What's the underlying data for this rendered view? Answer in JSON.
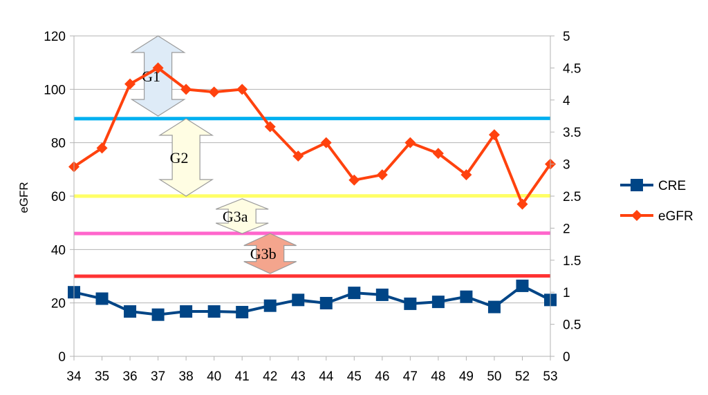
{
  "chart_data": {
    "type": "line",
    "categories": [
      "34",
      "35",
      "36",
      "37",
      "38",
      "40",
      "41",
      "42",
      "43",
      "44",
      "45",
      "46",
      "47",
      "48",
      "49",
      "50",
      "52",
      "53"
    ],
    "ylabel": "eGFR",
    "y_left_range": [
      0,
      120
    ],
    "y_left_ticks": [
      "0",
      "20",
      "40",
      "60",
      "80",
      "100",
      "120"
    ],
    "y_right_range": [
      0,
      5
    ],
    "y_right_ticks": [
      "0",
      "0.5",
      "1",
      "1.5",
      "2",
      "2.5",
      "3",
      "3.5",
      "4",
      "4.5",
      "5"
    ],
    "grid": true,
    "legend_position": "right",
    "series": [
      {
        "name": "CRE",
        "axis": "right",
        "color": "#004586",
        "marker": "square",
        "values": [
          1.0,
          0.9,
          0.7,
          0.65,
          0.7,
          0.7,
          0.69,
          0.79,
          0.88,
          0.83,
          0.99,
          0.96,
          0.82,
          0.85,
          0.93,
          0.77,
          1.1,
          0.88
        ]
      },
      {
        "name": "eGFR",
        "axis": "left",
        "color": "#ff420e",
        "marker": "diamond",
        "values": [
          71,
          78,
          102,
          108,
          100,
          99,
          100,
          86,
          75,
          80,
          66,
          68,
          80,
          76,
          68,
          83,
          57,
          72
        ]
      }
    ],
    "threshold_lines": [
      {
        "value": 89,
        "color": "#00b0f0"
      },
      {
        "value": 60,
        "color": "#ffff66"
      },
      {
        "value": 46,
        "color": "#ff66cc"
      },
      {
        "value": 30,
        "color": "#ff3333"
      }
    ],
    "stage_arrows": [
      {
        "label": "G1",
        "from": 90,
        "to": 120,
        "category": "37",
        "fill": "#deebf7"
      },
      {
        "label": "G2",
        "from": 60,
        "to": 89,
        "category": "38",
        "fill": "#fffde3"
      },
      {
        "label": "G3a",
        "from": 46,
        "to": 59,
        "category": "41",
        "fill": "#fffde3"
      },
      {
        "label": "G3b",
        "from": 31,
        "to": 46,
        "category": "42",
        "fill": "#f4a58d"
      }
    ]
  }
}
